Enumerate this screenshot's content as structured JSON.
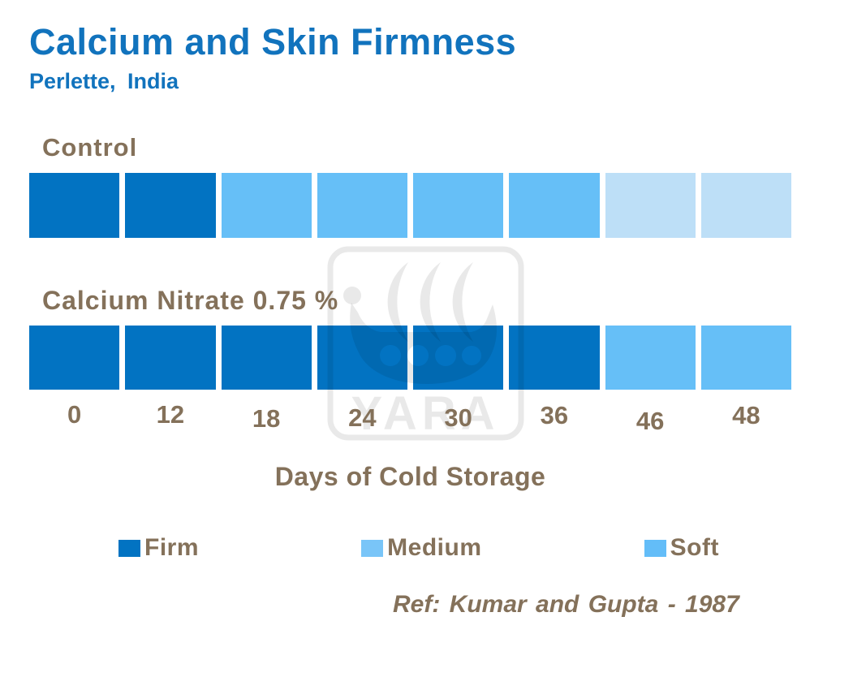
{
  "chart_data": {
    "type": "bar",
    "variant": "qualitative-firmness-strips",
    "title": "Calcium and Skin Firmness",
    "subtitle": "Perlette, India",
    "categories": [
      "0",
      "12",
      "18",
      "24",
      "30",
      "36",
      "46",
      "48"
    ],
    "xlabel": "Days of Cold Storage",
    "series": [
      {
        "name": "Control",
        "values": [
          "Firm",
          "Firm",
          "Medium",
          "Medium",
          "Medium",
          "Medium",
          "Soft",
          "Soft"
        ]
      },
      {
        "name": "Calcium Nitrate 0.75 %",
        "values": [
          "Firm",
          "Firm",
          "Firm",
          "Firm",
          "Firm",
          "Firm",
          "Medium",
          "Medium"
        ]
      }
    ],
    "value_colors": {
      "Firm": "#0273C2",
      "Medium": "#66BFF7",
      "Soft": "#BDDFF7"
    },
    "legend": [
      {
        "label": "Firm",
        "swatch": "#0273C2"
      },
      {
        "label": "Medium",
        "swatch": "#79C5F8"
      },
      {
        "label": "Soft",
        "swatch": "#63BDF8"
      }
    ],
    "legend_position": "bottom",
    "grid": false,
    "source": "Ref: Kumar and Gupta - 1987"
  },
  "watermark": {
    "text": "YARA"
  },
  "colors": {
    "background": "#FFFFFF",
    "title_blue": "#1173BD",
    "label_brown": "#84715A",
    "watermark_gray": "rgba(0,0,0,0.085)"
  }
}
